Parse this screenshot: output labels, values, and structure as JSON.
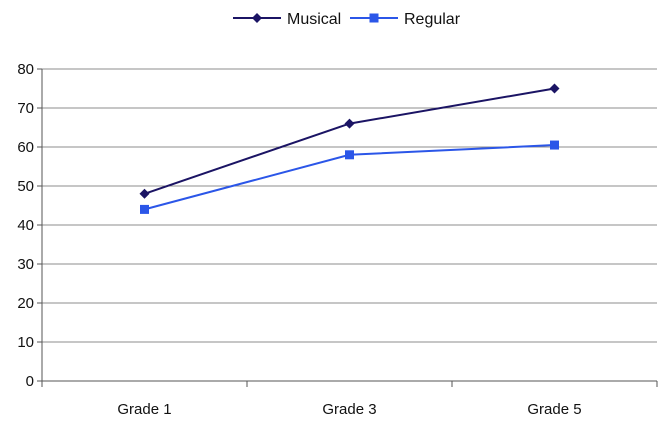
{
  "chart_data": {
    "type": "line",
    "categories": [
      "Grade 1",
      "Grade 3",
      "Grade 5"
    ],
    "series": [
      {
        "name": "Musical",
        "values": [
          48,
          66,
          75
        ],
        "color": "#1b1464",
        "marker": "diamond"
      },
      {
        "name": "Regular",
        "values": [
          44,
          58,
          60.5
        ],
        "color": "#2b56e8",
        "marker": "square"
      }
    ],
    "title": "",
    "xlabel": "",
    "ylabel": "",
    "ylim": [
      0,
      80
    ],
    "yticks": [
      0,
      10,
      20,
      30,
      40,
      50,
      60,
      70,
      80
    ],
    "grid": true,
    "legend": "top-center"
  }
}
